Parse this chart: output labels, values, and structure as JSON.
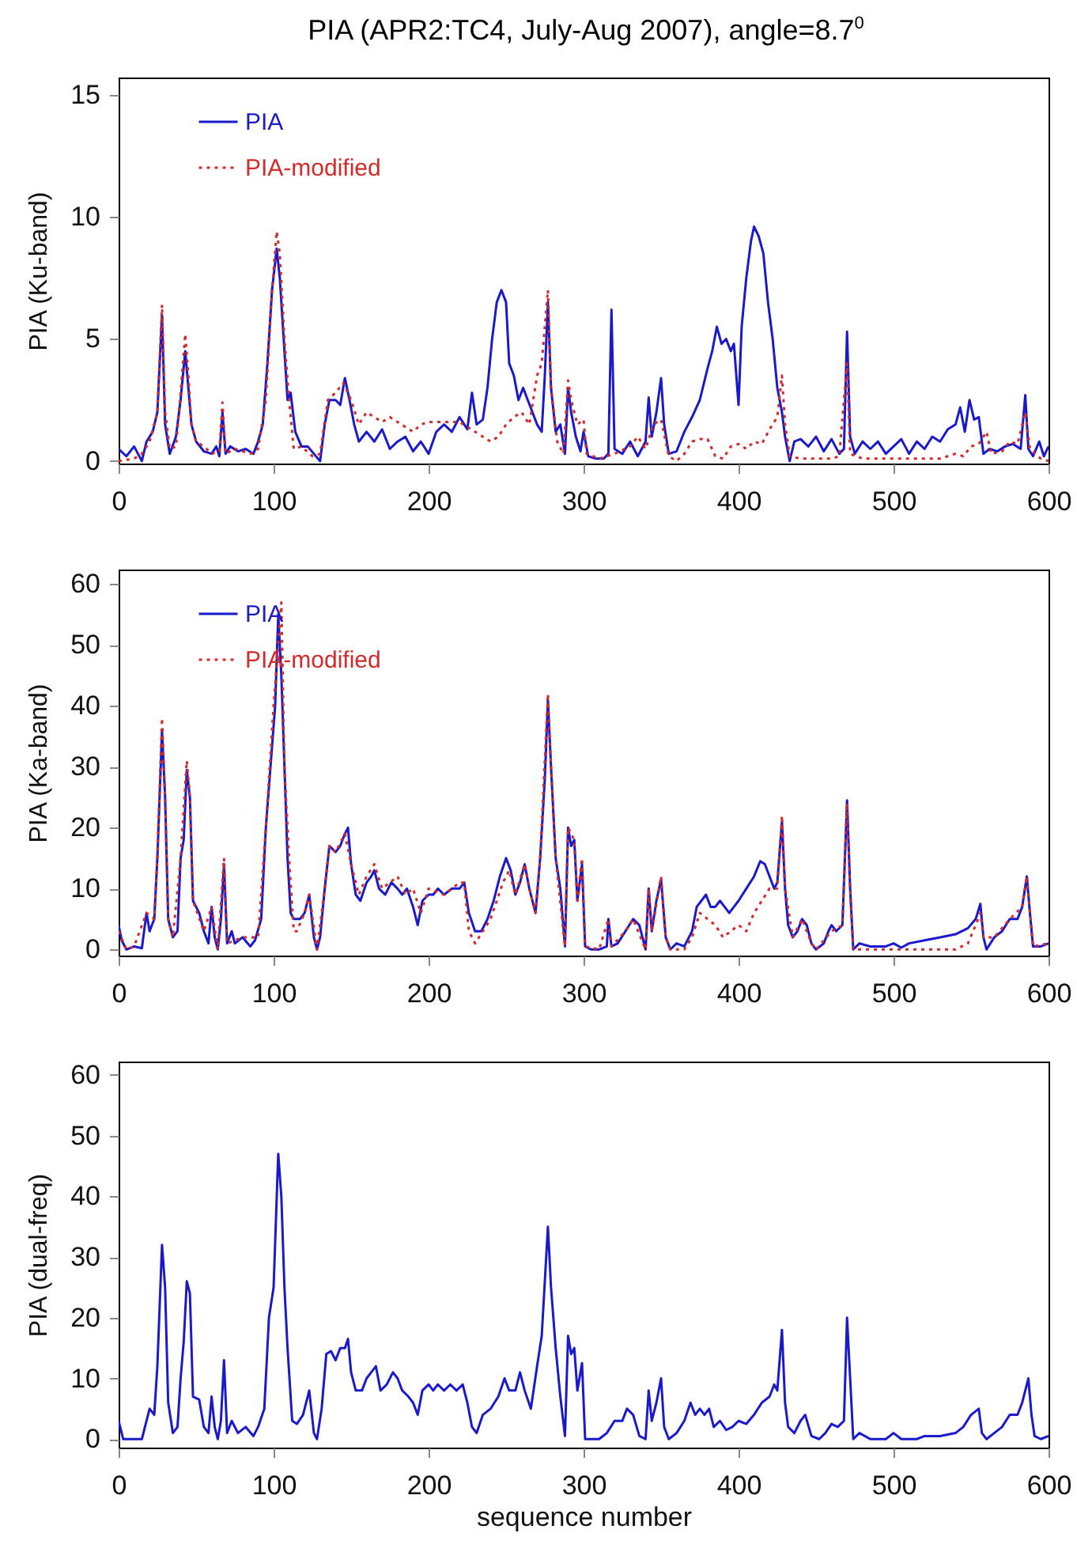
{
  "chart_data": [
    {
      "type": "line",
      "title": "PIA (APR2:TC4, July-Aug 2007), angle=8.7$^{0}$",
      "ylabel": "PIA (Ku-band)",
      "xlim": [
        0,
        600
      ],
      "xticks": [
        0,
        100,
        200,
        300,
        400,
        500,
        600
      ],
      "ylim": [
        -0.1,
        15.7
      ],
      "yticks": [
        0,
        5,
        10,
        15
      ],
      "legend": "top left",
      "series": [
        {
          "name": "PIA",
          "color": "#1a1acc",
          "line_style": "solid",
          "x": [
            0,
            5,
            10,
            15,
            18,
            22,
            25,
            28,
            30,
            33,
            37,
            40,
            43,
            45,
            47,
            50,
            55,
            60,
            63,
            65,
            67,
            69,
            72,
            77,
            82,
            87,
            90,
            93,
            96,
            99,
            102,
            104,
            107,
            109,
            111,
            114,
            118,
            122,
            126,
            130,
            133,
            136,
            140,
            143,
            146,
            149,
            152,
            155,
            160,
            165,
            170,
            175,
            180,
            185,
            190,
            195,
            200,
            205,
            210,
            215,
            220,
            225,
            228,
            231,
            235,
            238,
            241,
            244,
            247,
            250,
            252,
            255,
            258,
            261,
            264,
            267,
            270,
            273,
            275,
            277,
            279,
            282,
            285,
            288,
            290,
            292,
            295,
            298,
            300,
            303,
            308,
            313,
            316,
            318,
            320,
            325,
            330,
            335,
            340,
            342,
            344,
            347,
            350,
            352,
            355,
            360,
            365,
            370,
            375,
            380,
            383,
            386,
            389,
            392,
            395,
            397,
            400,
            402,
            405,
            408,
            410,
            413,
            416,
            419,
            422,
            425,
            428,
            430,
            433,
            436,
            440,
            445,
            450,
            455,
            460,
            465,
            468,
            470,
            472,
            475,
            480,
            485,
            490,
            495,
            500,
            505,
            510,
            515,
            520,
            525,
            530,
            535,
            540,
            543,
            546,
            549,
            552,
            555,
            558,
            562,
            567,
            572,
            577,
            582,
            585,
            587,
            590,
            594,
            597,
            600
          ],
          "values": [
            0.5,
            0.2,
            0.6,
            0,
            0.8,
            1.2,
            2,
            6.0,
            1.5,
            0.3,
            1,
            2.5,
            4.5,
            3,
            1.5,
            0.8,
            0.4,
            0.3,
            0.6,
            0.2,
            2.0,
            0.3,
            0.6,
            0.4,
            0.5,
            0.3,
            0.8,
            1.5,
            4,
            7,
            8.7,
            7.5,
            4.5,
            2.5,
            2.8,
            1.2,
            0.6,
            0.6,
            0.3,
            0,
            1.5,
            2.5,
            2.5,
            2.3,
            3.4,
            2.5,
            1.5,
            0.8,
            1.2,
            0.8,
            1.3,
            0.5,
            0.8,
            1,
            0.4,
            0.8,
            0.3,
            1.2,
            1.5,
            1.2,
            1.8,
            1.3,
            2.8,
            1.5,
            1.7,
            3,
            5,
            6.5,
            7,
            6.5,
            4,
            3.5,
            2.5,
            3,
            2.5,
            2,
            1.5,
            1.2,
            3.5,
            6.5,
            3,
            1.2,
            1.5,
            0.3,
            3,
            2,
            1,
            0.4,
            1.2,
            0.2,
            0.1,
            0.1,
            0.3,
            6.2,
            0.5,
            0.3,
            0.8,
            0.2,
            0.8,
            2.6,
            1,
            2,
            3.4,
            1.5,
            0.3,
            0.4,
            1.2,
            1.8,
            2.5,
            3.8,
            4.5,
            5.5,
            4.8,
            5,
            4.5,
            4.8,
            2.3,
            5.5,
            7.5,
            9,
            9.6,
            9.2,
            8.5,
            6.5,
            5,
            3,
            2,
            1,
            0,
            0.8,
            0.9,
            0.6,
            1,
            0.4,
            0.9,
            0.3,
            0.5,
            5.3,
            1,
            0.3,
            0.8,
            0.5,
            0.8,
            0.3,
            0.6,
            0.9,
            0.3,
            0.8,
            0.5,
            1.0,
            0.8,
            1.3,
            1.5,
            2.2,
            1.2,
            2.5,
            1.7,
            1.8,
            0.3,
            0.5,
            0.4,
            0.6,
            0.7,
            0.5,
            2.7,
            0.5,
            0.2,
            0.8,
            0.2,
            0.6
          ]
        },
        {
          "name": "PIA-modified",
          "color": "#d42a2a",
          "line_style": "dotted",
          "x": [
            0,
            10,
            15,
            20,
            25,
            28,
            30,
            33,
            37,
            40,
            43,
            45,
            47,
            50,
            55,
            60,
            65,
            67,
            69,
            75,
            85,
            90,
            95,
            99,
            102,
            104,
            107,
            110,
            113,
            118,
            125,
            130,
            135,
            140,
            145,
            150,
            155,
            160,
            165,
            170,
            175,
            180,
            185,
            190,
            195,
            200,
            210,
            220,
            230,
            240,
            245,
            250,
            255,
            260,
            265,
            270,
            273,
            277,
            279,
            283,
            287,
            290,
            292,
            296,
            300,
            302,
            310,
            320,
            330,
            335,
            340,
            345,
            350,
            355,
            360,
            365,
            370,
            375,
            380,
            385,
            390,
            395,
            400,
            405,
            410,
            415,
            420,
            425,
            428,
            430,
            433,
            440,
            450,
            460,
            465,
            470,
            472,
            480,
            490,
            500,
            510,
            520,
            530,
            540,
            545,
            550,
            555,
            560,
            563,
            570,
            575,
            580,
            585,
            588,
            595,
            600
          ],
          "values": [
            0,
            0.1,
            0.3,
            0.8,
            2,
            6.4,
            2,
            0.5,
            0.6,
            2.8,
            5.2,
            3.5,
            1.5,
            0.8,
            0.6,
            0.3,
            0.4,
            2.4,
            0.3,
            0.5,
            0.3,
            0.5,
            2.5,
            7,
            9.4,
            8.5,
            5,
            2.5,
            0.5,
            0.6,
            0.2,
            0.3,
            2.5,
            2.8,
            3.2,
            2.5,
            1.5,
            2,
            1.8,
            1.6,
            1.8,
            1.6,
            1.4,
            1.2,
            1.5,
            1.6,
            1.6,
            1.6,
            1.2,
            0.8,
            1,
            1.5,
            1.8,
            2,
            1.5,
            3.5,
            4,
            7,
            3,
            0.8,
            0.3,
            3.3,
            2.5,
            1.5,
            1.7,
            0.3,
            0.1,
            0.3,
            0.6,
            1.0,
            0.5,
            1.5,
            1.7,
            0.2,
            0.0,
            0.3,
            0.8,
            0.9,
            0.9,
            0.2,
            0.1,
            0.6,
            0.7,
            0.5,
            0.8,
            0.7,
            1.3,
            1.8,
            3.5,
            1.5,
            0.2,
            0.1,
            0.1,
            0.1,
            0.2,
            4,
            0.3,
            0.1,
            0.1,
            0.1,
            0.1,
            0.1,
            0.1,
            0.3,
            0.2,
            0.6,
            0.7,
            1.2,
            0.3,
            0.4,
            0.8,
            0.7,
            2.0,
            0.5,
            0.1,
            0
          ]
        }
      ]
    },
    {
      "type": "line",
      "ylabel": "PIA (Ka-band)",
      "xlim": [
        0,
        600
      ],
      "xticks": [
        0,
        100,
        200,
        300,
        400,
        500,
        600
      ],
      "ylim": [
        -1,
        62.4
      ],
      "yticks": [
        0,
        10,
        20,
        30,
        40,
        50,
        60
      ],
      "legend": "top left",
      "series": [
        {
          "name": "PIA",
          "color": "#1a1acc",
          "line_style": "solid",
          "x": [
            0,
            2,
            5,
            10,
            15,
            18,
            20,
            23,
            25,
            28,
            30,
            32,
            35,
            38,
            40,
            42,
            44,
            46,
            48,
            52,
            55,
            58,
            60,
            62,
            64,
            66,
            68,
            70,
            73,
            75,
            80,
            85,
            88,
            92,
            95,
            98,
            101,
            103,
            105,
            107,
            109,
            111,
            113,
            117,
            120,
            123,
            126,
            128,
            130,
            133,
            136,
            140,
            143,
            146,
            148,
            150,
            153,
            156,
            160,
            163,
            165,
            168,
            172,
            176,
            180,
            183,
            186,
            190,
            193,
            196,
            200,
            203,
            206,
            210,
            215,
            220,
            223,
            226,
            230,
            234,
            238,
            242,
            246,
            250,
            253,
            256,
            259,
            262,
            265,
            269,
            272,
            275,
            277,
            279,
            282,
            285,
            288,
            290,
            292,
            294,
            296,
            299,
            301,
            305,
            310,
            315,
            316,
            318,
            322,
            327,
            332,
            336,
            340,
            342,
            344,
            347,
            350,
            353,
            356,
            360,
            365,
            370,
            373,
            376,
            379,
            382,
            385,
            388,
            391,
            394,
            397,
            400,
            405,
            410,
            414,
            417,
            420,
            423,
            425,
            428,
            430,
            432,
            435,
            438,
            441,
            444,
            447,
            450,
            455,
            458,
            460,
            463,
            467,
            470,
            472,
            474,
            478,
            485,
            495,
            500,
            505,
            510,
            520,
            530,
            540,
            548,
            553,
            556,
            558,
            560,
            565,
            570,
            575,
            580,
            583,
            586,
            588,
            590,
            595,
            600
          ],
          "values": [
            4,
            1.5,
            0,
            0.5,
            0.2,
            6,
            3,
            5,
            15,
            36,
            25,
            5,
            2,
            3,
            15,
            18,
            29.5,
            25,
            8,
            6,
            3,
            1,
            7,
            2,
            0,
            5,
            14,
            1,
            3,
            1,
            2,
            0.5,
            1.5,
            5,
            20,
            30,
            40,
            55,
            45,
            30,
            15,
            6,
            5,
            5,
            6,
            9,
            2,
            0,
            2,
            10,
            17,
            16,
            17,
            19,
            20,
            14,
            9,
            8,
            11,
            12,
            13,
            10,
            9,
            11,
            10,
            9,
            10,
            7,
            4,
            8,
            9,
            9,
            10,
            9,
            10,
            10,
            11,
            6,
            3,
            3,
            5,
            8,
            12,
            15,
            13,
            9,
            11,
            14,
            10,
            6,
            15,
            28,
            41,
            30,
            15,
            10,
            0.5,
            20,
            17,
            18,
            8,
            14,
            0.5,
            0,
            0,
            0.5,
            5,
            0.5,
            1,
            3,
            5,
            4,
            0,
            10,
            3,
            8,
            11.5,
            2,
            0,
            1,
            0.5,
            3,
            7,
            8,
            9,
            7,
            7,
            8,
            7,
            6,
            7,
            8,
            10,
            12,
            14.5,
            14,
            12,
            10,
            11,
            21,
            10,
            4,
            2,
            3,
            5,
            4,
            1,
            0,
            1,
            3,
            4,
            3,
            4,
            24.5,
            10,
            0,
            1,
            0.5,
            0.5,
            1,
            0.3,
            1,
            1.5,
            2,
            2.5,
            3.5,
            5,
            7.5,
            2,
            0,
            2,
            3,
            5,
            5,
            7,
            12,
            6,
            0.5,
            0.5,
            1
          ]
        },
        {
          "name": "PIA-modified",
          "color": "#d42a2a",
          "line_style": "dotted",
          "x": [
            0,
            5,
            10,
            18,
            23,
            25,
            28,
            30,
            32,
            35,
            40,
            44,
            46,
            48,
            55,
            60,
            64,
            68,
            70,
            80,
            90,
            95,
            100,
            105,
            107,
            110,
            113,
            115,
            120,
            123,
            128,
            133,
            136,
            140,
            146,
            150,
            155,
            160,
            165,
            170,
            180,
            185,
            190,
            195,
            200,
            210,
            220,
            223,
            226,
            230,
            235,
            240,
            248,
            252,
            256,
            262,
            265,
            269,
            272,
            277,
            279,
            282,
            288,
            290,
            294,
            296,
            299,
            301,
            310,
            316,
            318,
            327,
            332,
            340,
            342,
            344,
            350,
            353,
            356,
            365,
            370,
            375,
            380,
            385,
            390,
            395,
            400,
            405,
            410,
            415,
            420,
            425,
            428,
            430,
            435,
            441,
            447,
            450,
            460,
            467,
            470,
            472,
            474,
            480,
            500,
            520,
            540,
            548,
            553,
            556,
            558,
            565,
            575,
            583,
            586,
            590,
            600
          ],
          "values": [
            3,
            0,
            0.5,
            6,
            5,
            15,
            38,
            25,
            5,
            2,
            15,
            31,
            25,
            8,
            3,
            7,
            0,
            15,
            1,
            2,
            2,
            20,
            40,
            57,
            30,
            15,
            3,
            3,
            6,
            9,
            0,
            10,
            17,
            16,
            19,
            14,
            9,
            12,
            14,
            10,
            12,
            9,
            10,
            6,
            10,
            9,
            11,
            11,
            3,
            1,
            3,
            5,
            11,
            13,
            9,
            14,
            10,
            6,
            15,
            42,
            30,
            15,
            0.5,
            20,
            18,
            8,
            15,
            0.5,
            0,
            5,
            0.5,
            3,
            5,
            0,
            10,
            3,
            12,
            2,
            0,
            0,
            2,
            6,
            5,
            4,
            2,
            3,
            4,
            3,
            6,
            8,
            10,
            10,
            22,
            10,
            2,
            5,
            1,
            0,
            3,
            4,
            24,
            10,
            0,
            0,
            0,
            0,
            0,
            1,
            4,
            6,
            2,
            2,
            5,
            7,
            12,
            0.5,
            1
          ]
        }
      ]
    },
    {
      "type": "line",
      "xlabel": "sequence number",
      "ylabel": "PIA (dual-freq)",
      "xlim": [
        0,
        600
      ],
      "xticks": [
        0,
        100,
        200,
        300,
        400,
        500,
        600
      ],
      "ylim": [
        -1.4,
        62.2
      ],
      "yticks": [
        0,
        10,
        20,
        30,
        40,
        50,
        60
      ],
      "series": [
        {
          "color": "#1a1acc",
          "line_style": "solid",
          "x": [
            0,
            3,
            8,
            15,
            18,
            20,
            23,
            25,
            28,
            30,
            32,
            35,
            38,
            40,
            42,
            44,
            46,
            48,
            52,
            55,
            58,
            60,
            62,
            64,
            66,
            68,
            70,
            73,
            77,
            82,
            87,
            90,
            94,
            97,
            100,
            103,
            105,
            107,
            109,
            112,
            115,
            119,
            123,
            126,
            128,
            131,
            134,
            137,
            140,
            143,
            146,
            148,
            150,
            153,
            157,
            160,
            163,
            166,
            169,
            173,
            177,
            180,
            183,
            187,
            190,
            193,
            196,
            200,
            203,
            206,
            210,
            214,
            218,
            222,
            225,
            228,
            231,
            235,
            240,
            245,
            249,
            252,
            256,
            259,
            262,
            266,
            270,
            273,
            277,
            279,
            282,
            285,
            288,
            290,
            292,
            294,
            296,
            299,
            301,
            305,
            310,
            315,
            320,
            325,
            328,
            332,
            336,
            340,
            342,
            344,
            347,
            350,
            352,
            355,
            360,
            365,
            369,
            372,
            375,
            378,
            381,
            384,
            388,
            392,
            396,
            400,
            405,
            410,
            415,
            420,
            423,
            425,
            428,
            430,
            432,
            436,
            440,
            443,
            447,
            452,
            456,
            460,
            464,
            468,
            470,
            472,
            474,
            478,
            485,
            495,
            500,
            505,
            515,
            520,
            530,
            540,
            545,
            550,
            555,
            557,
            560,
            565,
            570,
            575,
            580,
            583,
            587,
            589,
            591,
            595,
            600
          ],
          "values": [
            3,
            0,
            0,
            0,
            3,
            5,
            4,
            12,
            32,
            25,
            6,
            1,
            2,
            10,
            16,
            26,
            24,
            7,
            6.5,
            2,
            1,
            7,
            2,
            0,
            3,
            13,
            1,
            3,
            1,
            2,
            0.5,
            2,
            5,
            20,
            25,
            47,
            40,
            25,
            15,
            3,
            2.5,
            4,
            8,
            1,
            0,
            5,
            14,
            14.5,
            13,
            15,
            15,
            16.5,
            11,
            8,
            8,
            10,
            11,
            12,
            8,
            9,
            11,
            10,
            8,
            7,
            6,
            4,
            8,
            9,
            8,
            9,
            8,
            9,
            8,
            9,
            6,
            2,
            1,
            4,
            5,
            7,
            10,
            8,
            8,
            11,
            8,
            5,
            12,
            17,
            35,
            25,
            15,
            7,
            0.5,
            17,
            14,
            15,
            8,
            12.5,
            0,
            0,
            0,
            1,
            3,
            3,
            5,
            4,
            0.5,
            0,
            8,
            3,
            6,
            10,
            2,
            0,
            1,
            3,
            6,
            4,
            5,
            4,
            5,
            2,
            3,
            1.5,
            2,
            3,
            2.5,
            4,
            6,
            7,
            9,
            8,
            18,
            6,
            2,
            1,
            3,
            4,
            0.5,
            0,
            1,
            2.5,
            2,
            3,
            20,
            10,
            0,
            1,
            0,
            0,
            1,
            0,
            0,
            0.5,
            0.5,
            1,
            2,
            4,
            5,
            1,
            0,
            1,
            2,
            4,
            4,
            6,
            10,
            4,
            0.5,
            0,
            0.5
          ]
        }
      ]
    }
  ]
}
